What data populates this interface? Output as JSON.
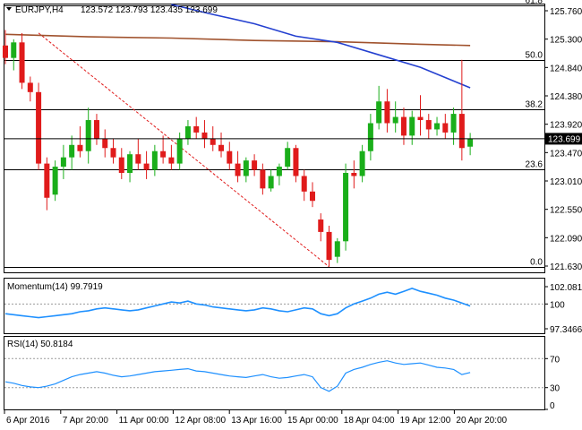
{
  "header": {
    "symbol_text": "EURJPY,H4",
    "ohlc_text": "123.572 123.793 123.435 123.699"
  },
  "price_panel": {
    "axis_ticks": [
      "125.760",
      "125.300",
      "124.840",
      "124.380",
      "123.920",
      "123.470",
      "123.010",
      "122.550",
      "122.090",
      "121.630"
    ],
    "current_price_label": "123.699",
    "fib_levels": [
      {
        "label": "61.8",
        "price": 125.84
      },
      {
        "label": "50.0",
        "price": 124.97
      },
      {
        "label": "38.2",
        "price": 124.18
      },
      {
        "label": "23.6",
        "price": 123.21
      },
      {
        "label": "0.0",
        "price": 121.64
      }
    ],
    "colors": {
      "bull": "#1aae1a",
      "bear": "#e01b1b",
      "ma_blue": "#2440d0",
      "ma_brown": "#a0522d",
      "trend": "#e01b1b"
    }
  },
  "momentum_panel": {
    "label": "Momentum(14) 99.7919",
    "axis_ticks": [
      "102.0818",
      "100",
      "97.3466"
    ]
  },
  "rsi_panel": {
    "label": "RSI(14) 50.8184",
    "axis_ticks": [
      "70",
      "30",
      "0"
    ]
  },
  "time_axis": {
    "labels": [
      "6 Apr 2016",
      "7 Apr 20:00",
      "11 Apr 00:00",
      "12 Apr 08:00",
      "13 Apr 16:00",
      "15 Apr 00:00",
      "18 Apr 04:00",
      "19 Apr 12:00",
      "20 Apr 20:00"
    ]
  },
  "chart_data": [
    {
      "type": "candlestick",
      "title": "EURJPY,H4",
      "ylim": [
        121.55,
        125.86
      ],
      "series": [
        {
          "name": "EURJPY",
          "ohlc": [
            [
              125.2,
              125.45,
              124.9,
              125.0
            ],
            [
              125.0,
              125.3,
              124.8,
              125.25
            ],
            [
              125.25,
              125.4,
              124.5,
              124.6
            ],
            [
              124.6,
              124.7,
              124.3,
              124.45
            ],
            [
              124.45,
              124.6,
              123.2,
              123.3
            ],
            [
              123.3,
              123.4,
              122.55,
              122.75
            ],
            [
              122.8,
              123.35,
              122.7,
              123.25
            ],
            [
              123.25,
              123.6,
              123.05,
              123.4
            ],
            [
              123.4,
              123.75,
              123.2,
              123.6
            ],
            [
              123.6,
              123.9,
              123.4,
              123.5
            ],
            [
              123.5,
              124.2,
              123.3,
              124.0
            ],
            [
              124.0,
              124.1,
              123.6,
              123.7
            ],
            [
              123.7,
              123.85,
              123.4,
              123.55
            ],
            [
              123.55,
              123.7,
              123.3,
              123.4
            ],
            [
              123.4,
              123.55,
              123.05,
              123.15
            ],
            [
              123.15,
              123.5,
              123.0,
              123.45
            ],
            [
              123.45,
              123.7,
              123.2,
              123.3
            ],
            [
              123.3,
              123.5,
              123.05,
              123.2
            ],
            [
              123.2,
              123.6,
              123.1,
              123.5
            ],
            [
              123.5,
              123.75,
              123.3,
              123.4
            ],
            [
              123.4,
              123.6,
              123.2,
              123.3
            ],
            [
              123.3,
              123.8,
              123.2,
              123.7
            ],
            [
              123.7,
              124.0,
              123.6,
              123.9
            ],
            [
              123.9,
              124.05,
              123.7,
              123.8
            ],
            [
              123.8,
              124.0,
              123.55,
              123.7
            ],
            [
              123.7,
              123.9,
              123.5,
              123.6
            ],
            [
              123.6,
              123.8,
              123.4,
              123.5
            ],
            [
              123.5,
              123.65,
              123.2,
              123.3
            ],
            [
              123.3,
              123.5,
              123.0,
              123.1
            ],
            [
              123.1,
              123.4,
              123.0,
              123.35
            ],
            [
              123.35,
              123.45,
              123.1,
              123.2
            ],
            [
              123.2,
              123.3,
              122.8,
              122.9
            ],
            [
              122.9,
              123.2,
              122.85,
              123.1
            ],
            [
              123.1,
              123.3,
              122.95,
              123.25
            ],
            [
              123.25,
              123.65,
              123.2,
              123.55
            ],
            [
              123.55,
              123.6,
              123.0,
              123.1
            ],
            [
              123.1,
              123.2,
              122.7,
              122.85
            ],
            [
              122.85,
              123.0,
              122.6,
              122.7
            ],
            [
              122.4,
              122.5,
              122.05,
              122.2
            ],
            [
              122.2,
              122.3,
              121.64,
              121.75
            ],
            [
              121.8,
              122.1,
              121.7,
              122.05
            ],
            [
              122.05,
              123.3,
              121.9,
              123.15
            ],
            [
              123.15,
              123.35,
              122.9,
              123.1
            ],
            [
              123.1,
              123.6,
              123.0,
              123.5
            ],
            [
              123.5,
              124.1,
              123.35,
              123.95
            ],
            [
              123.95,
              124.55,
              123.85,
              124.3
            ],
            [
              124.3,
              124.5,
              123.8,
              123.95
            ],
            [
              123.95,
              124.3,
              123.8,
              124.05
            ],
            [
              124.05,
              124.2,
              123.6,
              123.75
            ],
            [
              123.75,
              124.15,
              123.6,
              124.05
            ],
            [
              124.05,
              124.4,
              123.75,
              124.0
            ],
            [
              124.0,
              124.1,
              123.7,
              123.85
            ],
            [
              123.85,
              124.05,
              123.75,
              123.95
            ],
            [
              123.95,
              124.1,
              123.7,
              123.8
            ],
            [
              123.8,
              124.2,
              123.6,
              124.1
            ],
            [
              124.1,
              124.97,
              123.35,
              123.55
            ],
            [
              123.572,
              123.793,
              123.435,
              123.699
            ]
          ]
        },
        {
          "name": "MA blue",
          "points": [
            [
              20,
              125.86
            ],
            [
              25,
              125.7
            ],
            [
              30,
              125.55
            ],
            [
              35,
              125.35
            ],
            [
              40,
              125.25
            ],
            [
              45,
              125.05
            ],
            [
              50,
              124.85
            ],
            [
              56,
              124.52
            ]
          ]
        },
        {
          "name": "MA brown",
          "points": [
            [
              0,
              125.38
            ],
            [
              10,
              125.34
            ],
            [
              20,
              125.32
            ],
            [
              30,
              125.28
            ],
            [
              40,
              125.26
            ],
            [
              50,
              125.22
            ],
            [
              56,
              125.2
            ]
          ]
        },
        {
          "name": "Trend line",
          "points": [
            [
              4,
              125.4
            ],
            [
              39,
              121.64
            ]
          ]
        }
      ]
    },
    {
      "type": "line",
      "title": "Momentum(14) 99.7919",
      "ylim": [
        97.0,
        102.6
      ],
      "series": [
        {
          "name": "Momentum(14)",
          "values": [
            99.0,
            98.9,
            98.8,
            98.7,
            98.6,
            98.7,
            98.8,
            98.9,
            99.0,
            99.2,
            99.3,
            99.5,
            99.6,
            99.5,
            99.4,
            99.3,
            99.4,
            99.6,
            99.8,
            100.0,
            100.2,
            100.1,
            100.3,
            100.0,
            99.9,
            99.7,
            99.6,
            99.5,
            99.4,
            99.3,
            99.4,
            99.6,
            99.5,
            99.3,
            99.2,
            99.4,
            99.6,
            99.5,
            99.0,
            98.8,
            99.0,
            99.6,
            100.0,
            100.3,
            100.6,
            101.0,
            101.2,
            101.0,
            101.3,
            101.6,
            101.3,
            101.1,
            100.9,
            100.6,
            100.4,
            100.1,
            99.79
          ]
        }
      ]
    },
    {
      "type": "line",
      "title": "RSI(14) 50.8184",
      "ylim": [
        0,
        100
      ],
      "series": [
        {
          "name": "RSI(14)",
          "values": [
            38,
            36,
            33,
            31,
            30,
            32,
            35,
            40,
            45,
            48,
            50,
            52,
            50,
            47,
            45,
            46,
            48,
            50,
            52,
            53,
            54,
            55,
            56,
            53,
            52,
            50,
            48,
            46,
            45,
            44,
            46,
            48,
            45,
            43,
            44,
            46,
            48,
            45,
            30,
            25,
            32,
            50,
            55,
            58,
            62,
            65,
            67,
            64,
            62,
            63,
            64,
            61,
            58,
            57,
            55,
            48,
            50.82
          ]
        }
      ]
    }
  ]
}
